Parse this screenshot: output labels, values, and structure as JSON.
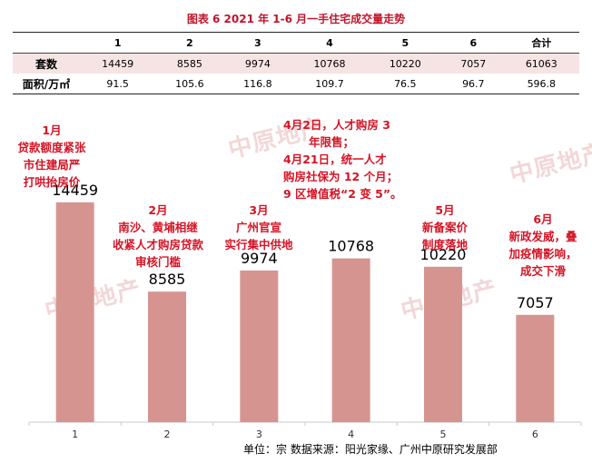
{
  "title": "图表 6   2021 年 1-6 月一手住宅成交量走势",
  "table": {
    "header": [
      "",
      "1",
      "2",
      "3",
      "4",
      "5",
      "6",
      "合计"
    ],
    "rows": [
      {
        "label": "套数",
        "cells": [
          "14459",
          "8585",
          "9974",
          "10768",
          "10220",
          "7057",
          "61063"
        ]
      },
      {
        "label": "面积/万㎡",
        "cells": [
          "91.5",
          "105.6",
          "116.8",
          "109.7",
          "76.5",
          "96.7",
          "596.8"
        ]
      }
    ]
  },
  "chart_data": {
    "type": "bar",
    "categories": [
      "1",
      "2",
      "3",
      "4",
      "5",
      "6"
    ],
    "values": [
      14459,
      8585,
      9974,
      10768,
      10220,
      7057
    ],
    "ylim": [
      0,
      20000
    ],
    "grid": false,
    "bar_color": "#d69491",
    "data_labels": [
      "14459",
      "8585",
      "9974",
      "10768",
      "10220",
      "7057"
    ],
    "annotations": [
      {
        "lines": [
          "1月",
          "贷款额度紧张",
          "市住建局严",
          "打哄抬房价"
        ]
      },
      {
        "lines": [
          "2月",
          "南沙、黄埔相继",
          "收紧人才购房贷款",
          "审核门槛"
        ]
      },
      {
        "lines": [
          "3月",
          "广州官宣",
          "实行集中供地"
        ]
      },
      {
        "lines": [
          "4月2日，人才购房 3",
          "年限售；",
          "4月21日，统一人才",
          "购房社保为 12 个月；",
          "9 区增值税“2 变 5”。"
        ]
      },
      {
        "lines": [
          "5月",
          "新备案价",
          "制度落地"
        ]
      },
      {
        "lines": [
          "6月",
          "新政发威，叠",
          "加疫情影响，",
          "成交下滑"
        ]
      }
    ]
  },
  "source": "单位：宗  数据来源：阳光家缘、广州中原研究发展部",
  "watermark_text": "中原地产",
  "colors": {
    "accent": "#c0152b",
    "annotation": "#d41425",
    "bar": "#d69491",
    "axis": "#c8c8c8",
    "row_highlight": "#f6e4e4"
  }
}
